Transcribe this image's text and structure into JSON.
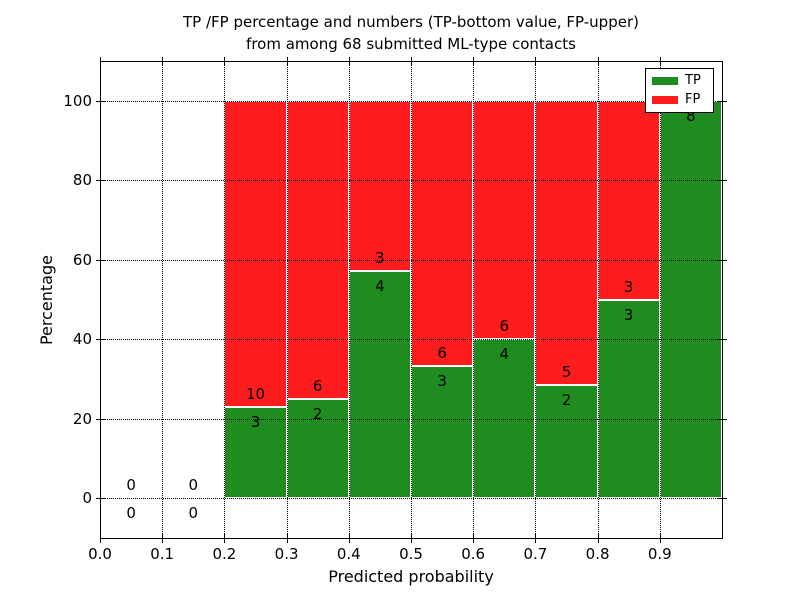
{
  "chart_data": {
    "type": "bar",
    "variant": "stacked-percentage-histogram",
    "title_lines": [
      "TP /FP percentage and numbers (TP-bottom value, FP-upper)",
      "from among 68 submitted ML-type contacts"
    ],
    "xlabel": "Predicted probability",
    "ylabel": "Percentage",
    "total_contacts": 68,
    "bin_width": 0.1,
    "xlim": [
      0.0,
      1.0
    ],
    "ylim": [
      -10,
      110
    ],
    "grid": "dotted",
    "x_ticks": [
      0.0,
      0.1,
      0.2,
      0.3,
      0.4,
      0.5,
      0.6,
      0.7,
      0.8,
      0.9
    ],
    "x_tick_labels": [
      "0.0",
      "0.1",
      "0.2",
      "0.3",
      "0.4",
      "0.5",
      "0.6",
      "0.7",
      "0.8",
      "0.9"
    ],
    "y_ticks": [
      0,
      20,
      40,
      60,
      80,
      100
    ],
    "y_tick_labels": [
      "0",
      "20",
      "40",
      "60",
      "80",
      "100"
    ],
    "colors": {
      "tp": "#1f8c1f",
      "fp": "#ff1c1c"
    },
    "legend": {
      "position": "upper right",
      "entries": [
        {
          "label": "TP",
          "color": "#1f8c1f"
        },
        {
          "label": "FP",
          "color": "#ff1c1c"
        }
      ]
    },
    "bins": [
      {
        "start": 0.0,
        "tp": 0,
        "fp": 0
      },
      {
        "start": 0.1,
        "tp": 0,
        "fp": 0
      },
      {
        "start": 0.2,
        "tp": 3,
        "fp": 10
      },
      {
        "start": 0.3,
        "tp": 2,
        "fp": 6
      },
      {
        "start": 0.4,
        "tp": 4,
        "fp": 3
      },
      {
        "start": 0.5,
        "tp": 3,
        "fp": 6
      },
      {
        "start": 0.6,
        "tp": 4,
        "fp": 6
      },
      {
        "start": 0.7,
        "tp": 2,
        "fp": 5
      },
      {
        "start": 0.8,
        "tp": 3,
        "fp": 3
      },
      {
        "start": 0.9,
        "tp": 8,
        "fp": 0
      }
    ]
  }
}
